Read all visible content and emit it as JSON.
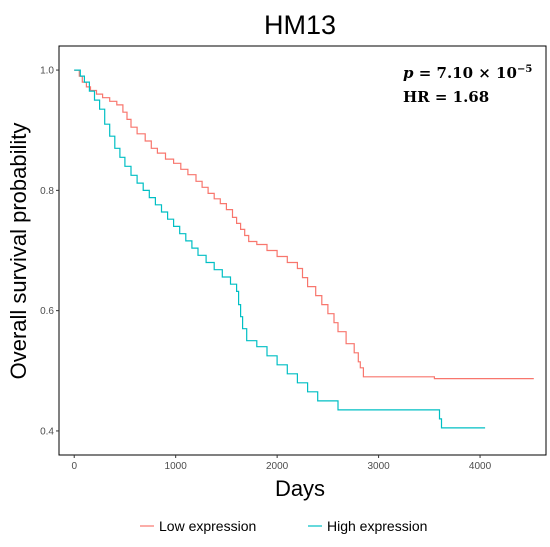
{
  "chart_data": {
    "type": "line",
    "title": "HM13",
    "xlabel": "Days",
    "ylabel": "Overall survival probability",
    "xlim": [
      -150,
      4650
    ],
    "ylim": [
      0.36,
      1.04
    ],
    "xticks": [
      0,
      1000,
      2000,
      3000,
      4000
    ],
    "yticks": [
      0.4,
      0.6,
      0.8,
      1.0
    ],
    "ytick_labels": [
      "0.4",
      "0.6",
      "0.8",
      "1.0"
    ],
    "grid": false,
    "legend_position": "bottom",
    "annotation": {
      "p_symbol": "p",
      "p_value": " = 7.10 × 10",
      "p_exponent": "−5",
      "hr": "HR = 1.68"
    },
    "series": [
      {
        "name": "Low expression",
        "color": "#F8766D",
        "x": [
          0,
          50,
          80,
          120,
          160,
          220,
          280,
          350,
          420,
          480,
          520,
          560,
          620,
          700,
          760,
          820,
          900,
          980,
          1050,
          1120,
          1200,
          1260,
          1320,
          1380,
          1440,
          1500,
          1560,
          1600,
          1640,
          1680,
          1720,
          1800,
          1900,
          2000,
          2100,
          2200,
          2250,
          2300,
          2380,
          2440,
          2500,
          2560,
          2600,
          2680,
          2760,
          2800,
          2820,
          2850,
          3550,
          3600,
          4530
        ],
        "y": [
          1.0,
          0.99,
          0.98,
          0.972,
          0.966,
          0.96,
          0.954,
          0.948,
          0.942,
          0.93,
          0.918,
          0.905,
          0.894,
          0.882,
          0.87,
          0.862,
          0.852,
          0.845,
          0.835,
          0.826,
          0.815,
          0.805,
          0.795,
          0.786,
          0.778,
          0.768,
          0.755,
          0.745,
          0.735,
          0.725,
          0.715,
          0.71,
          0.7,
          0.69,
          0.68,
          0.67,
          0.655,
          0.64,
          0.625,
          0.61,
          0.595,
          0.58,
          0.565,
          0.545,
          0.53,
          0.515,
          0.505,
          0.49,
          0.487,
          0.487,
          0.487
        ]
      },
      {
        "name": "High expression",
        "color": "#00BFC4",
        "x": [
          0,
          60,
          100,
          150,
          200,
          250,
          300,
          350,
          400,
          450,
          500,
          560,
          620,
          680,
          740,
          800,
          860,
          920,
          980,
          1040,
          1100,
          1160,
          1220,
          1300,
          1380,
          1460,
          1540,
          1600,
          1620,
          1640,
          1660,
          1700,
          1800,
          1900,
          2000,
          2100,
          2200,
          2300,
          2400,
          2600,
          3600,
          3620,
          4050
        ],
        "y": [
          1.0,
          0.99,
          0.98,
          0.965,
          0.95,
          0.935,
          0.91,
          0.89,
          0.87,
          0.855,
          0.84,
          0.825,
          0.812,
          0.8,
          0.788,
          0.776,
          0.764,
          0.752,
          0.74,
          0.728,
          0.716,
          0.704,
          0.692,
          0.68,
          0.668,
          0.656,
          0.644,
          0.632,
          0.61,
          0.59,
          0.57,
          0.55,
          0.54,
          0.525,
          0.51,
          0.495,
          0.48,
          0.465,
          0.45,
          0.435,
          0.42,
          0.405,
          0.405
        ]
      }
    ]
  }
}
